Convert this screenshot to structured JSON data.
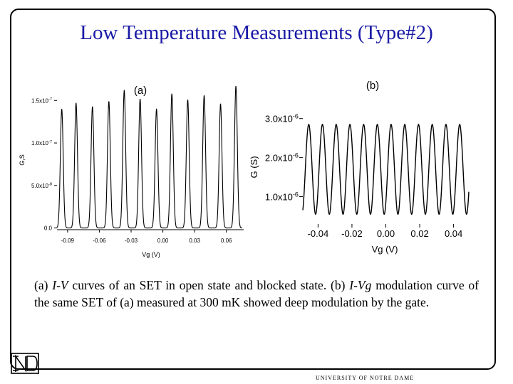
{
  "slide": {
    "title": "Low Temperature Measurements (Type#2)",
    "caption": {
      "p1": "(a) ",
      "p2": "I-V",
      "p3": " curves of an SET in open state and blocked state. (b) ",
      "p4": "I-Vg",
      "p5": " modulation curve of the same SET of (a) measured at 300 mK showed deep modulation by the gate."
    },
    "footer": "UNIVERSITY OF NOTRE DAME"
  },
  "chart_data": [
    {
      "type": "line",
      "panel_label": "(a)",
      "xlabel": "Vg (V)",
      "ylabel": "G,S",
      "xlim": [
        -0.1,
        0.075
      ],
      "ylim": [
        -2e-09,
        1.72e-07
      ],
      "x_ticks": [
        -0.09,
        -0.06,
        -0.03,
        0.0,
        0.03,
        0.06
      ],
      "x_tick_labels": [
        "-0.09",
        "-0.06",
        "-0.03",
        "0.00",
        "0.03",
        "0.06"
      ],
      "y_ticks": [
        0.0,
        5e-08,
        1e-07,
        1.5e-07
      ],
      "y_tick_labels": [
        {
          "mantissa": "0.0",
          "exp": ""
        },
        {
          "mantissa": "5.0x10",
          "exp": "-8"
        },
        {
          "mantissa": "1.0x10",
          "exp": "-7"
        },
        {
          "mantissa": "1.5x10",
          "exp": "-7"
        }
      ],
      "series": [
        {
          "peaks": [
            {
              "x": -0.0955,
              "y": 1.4e-07
            },
            {
              "x": -0.082,
              "y": 1.47e-07
            },
            {
              "x": -0.0665,
              "y": 1.43e-07
            },
            {
              "x": -0.051,
              "y": 1.49e-07
            },
            {
              "x": -0.0365,
              "y": 1.62e-07
            },
            {
              "x": -0.0215,
              "y": 1.52e-07
            },
            {
              "x": -0.006,
              "y": 1.4e-07
            },
            {
              "x": 0.0085,
              "y": 1.58e-07
            },
            {
              "x": 0.0235,
              "y": 1.51e-07
            },
            {
              "x": 0.039,
              "y": 1.56e-07
            },
            {
              "x": 0.0545,
              "y": 1.46e-07
            },
            {
              "x": 0.069,
              "y": 1.67e-07
            }
          ],
          "peak_width": 0.0019,
          "baseline": 0.0
        }
      ]
    },
    {
      "type": "line",
      "panel_label": "(b)",
      "xlabel": "Vg (V)",
      "ylabel": "G (S)",
      "xlim": [
        -0.049,
        0.049
      ],
      "ylim": [
        3e-07,
        3.45e-06
      ],
      "x_ticks": [
        -0.04,
        -0.02,
        0.0,
        0.02,
        0.04
      ],
      "x_tick_labels": [
        "-0.04",
        "-0.02",
        "0.00",
        "0.02",
        "0.04"
      ],
      "y_ticks": [
        1e-06,
        2e-06,
        3e-06
      ],
      "y_tick_labels": [
        {
          "mantissa": "1.0x10",
          "exp": "-6"
        },
        {
          "mantissa": "2.0x10",
          "exp": "-6"
        },
        {
          "mantissa": "3.0x10",
          "exp": "-6"
        }
      ],
      "series": [
        {
          "period": 0.0081,
          "phase_x_of_first_max": -0.0455,
          "max_y": 2.85e-06,
          "min_y": 5.5e-07
        }
      ]
    }
  ]
}
